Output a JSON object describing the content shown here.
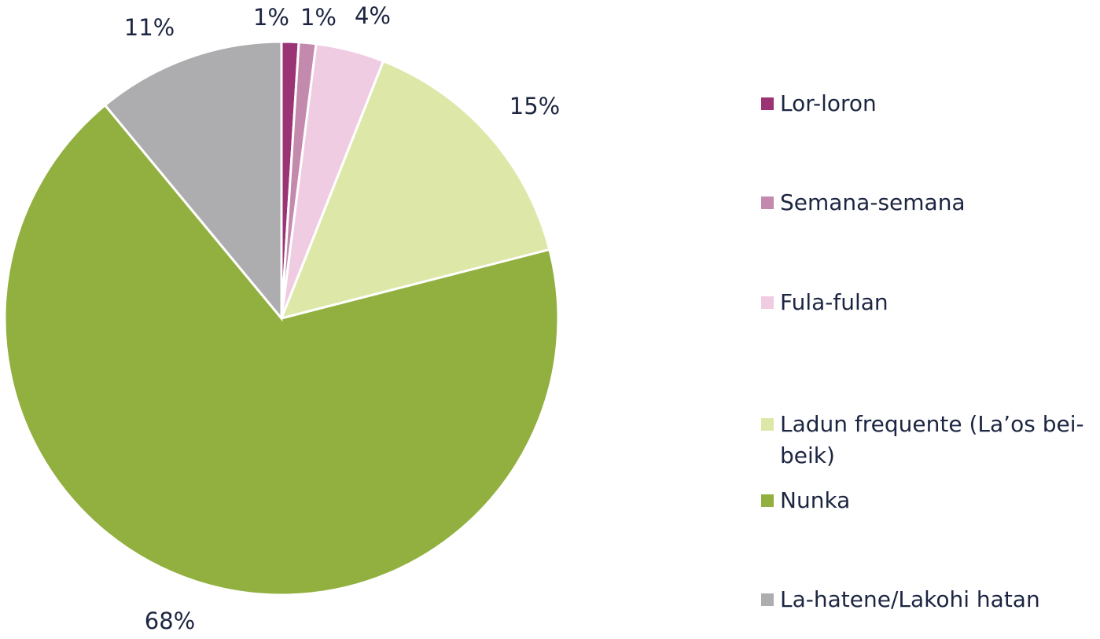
{
  "chart_data": {
    "type": "pie",
    "categories": [
      "Lor-loron",
      "Semana-semana",
      "Fula-fulan",
      "Ladun frequente (La’os bei-beik)",
      "Nunka",
      "La-hatene/Lakohi hatan"
    ],
    "values": [
      1,
      1,
      4,
      15,
      68,
      11
    ],
    "value_labels": [
      "1%",
      "1%",
      "4%",
      "15%",
      "68%",
      "11%"
    ],
    "colors": [
      "#9b3474",
      "#c48aae",
      "#f0cce3",
      "#dde8a8",
      "#92b040",
      "#adadaf"
    ],
    "legend": "right"
  }
}
